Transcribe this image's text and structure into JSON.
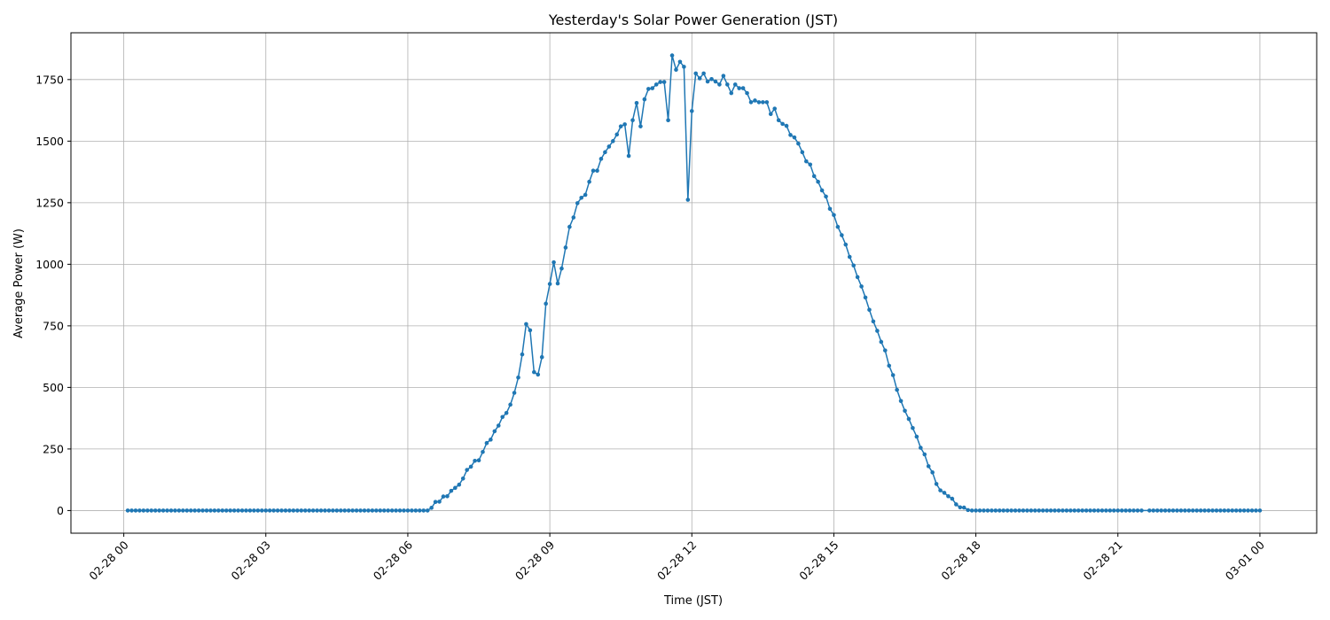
{
  "chart_data": {
    "type": "line",
    "title": "Yesterday's Solar Power Generation (JST)",
    "x_label": "Time (JST)",
    "y_label": "Average Power (W)",
    "color": "#1f77b4",
    "grid": true,
    "xlim": [
      -67,
      1512
    ],
    "ylim": [
      -92,
      1940
    ],
    "xticks": [
      {
        "value": 0,
        "label": "02-28 00"
      },
      {
        "value": 180,
        "label": "02-28 03"
      },
      {
        "value": 360,
        "label": "02-28 06"
      },
      {
        "value": 540,
        "label": "02-28 09"
      },
      {
        "value": 720,
        "label": "02-28 12"
      },
      {
        "value": 900,
        "label": "02-28 15"
      },
      {
        "value": 1080,
        "label": "02-28 18"
      },
      {
        "value": 1260,
        "label": "02-28 21"
      },
      {
        "value": 1440,
        "label": "03-01 00"
      }
    ],
    "yticks": [
      0,
      250,
      500,
      750,
      1000,
      1250,
      1500,
      1750
    ],
    "x": [
      5,
      10,
      15,
      20,
      25,
      30,
      35,
      40,
      45,
      50,
      55,
      60,
      65,
      70,
      75,
      80,
      85,
      90,
      95,
      100,
      105,
      110,
      115,
      120,
      125,
      130,
      135,
      140,
      145,
      150,
      155,
      160,
      165,
      170,
      175,
      180,
      185,
      190,
      195,
      200,
      205,
      210,
      215,
      220,
      225,
      230,
      235,
      240,
      245,
      250,
      255,
      260,
      265,
      270,
      275,
      280,
      285,
      290,
      295,
      300,
      305,
      310,
      315,
      320,
      325,
      330,
      335,
      340,
      345,
      350,
      355,
      360,
      365,
      370,
      375,
      380,
      385,
      390,
      395,
      400,
      405,
      410,
      415,
      420,
      425,
      430,
      435,
      440,
      445,
      450,
      455,
      460,
      465,
      470,
      475,
      480,
      485,
      490,
      495,
      500,
      505,
      510,
      515,
      520,
      525,
      530,
      535,
      540,
      545,
      550,
      555,
      560,
      565,
      570,
      575,
      580,
      585,
      590,
      595,
      600,
      605,
      610,
      615,
      620,
      625,
      630,
      635,
      640,
      645,
      650,
      655,
      660,
      665,
      670,
      675,
      680,
      685,
      690,
      695,
      700,
      705,
      710,
      715,
      720,
      725,
      730,
      735,
      740,
      745,
      750,
      755,
      760,
      765,
      770,
      775,
      780,
      785,
      790,
      795,
      800,
      805,
      810,
      815,
      820,
      825,
      830,
      835,
      840,
      845,
      850,
      855,
      860,
      865,
      870,
      875,
      880,
      885,
      890,
      895,
      900,
      905,
      910,
      915,
      920,
      925,
      930,
      935,
      940,
      945,
      950,
      955,
      960,
      965,
      970,
      975,
      980,
      985,
      990,
      995,
      1000,
      1005,
      1010,
      1015,
      1020,
      1025,
      1030,
      1035,
      1040,
      1045,
      1050,
      1055,
      1060,
      1065,
      1070,
      1075,
      1080,
      1085,
      1090,
      1095,
      1100,
      1105,
      1110,
      1115,
      1120,
      1125,
      1130,
      1135,
      1140,
      1145,
      1150,
      1155,
      1160,
      1165,
      1170,
      1175,
      1180,
      1185,
      1190,
      1195,
      1200,
      1205,
      1210,
      1215,
      1220,
      1225,
      1230,
      1235,
      1240,
      1245,
      1250,
      1255,
      1260,
      1265,
      1270,
      1275,
      1280,
      1285,
      1290,
      1300,
      1305,
      1310,
      1315,
      1320,
      1325,
      1330,
      1335,
      1340,
      1345,
      1350,
      1355,
      1360,
      1365,
      1370,
      1375,
      1380,
      1385,
      1390,
      1395,
      1400,
      1405,
      1410,
      1415,
      1420,
      1425,
      1430,
      1435,
      1440
    ],
    "values": [
      0,
      0,
      0,
      0,
      0,
      0,
      0,
      0,
      0,
      0,
      0,
      0,
      0,
      0,
      0,
      0,
      0,
      0,
      0,
      0,
      0,
      0,
      0,
      0,
      0,
      0,
      0,
      0,
      0,
      0,
      0,
      0,
      0,
      0,
      0,
      0,
      0,
      0,
      0,
      0,
      0,
      0,
      0,
      0,
      0,
      0,
      0,
      0,
      0,
      0,
      0,
      0,
      0,
      0,
      0,
      0,
      0,
      0,
      0,
      0,
      0,
      0,
      0,
      0,
      0,
      0,
      0,
      0,
      0,
      0,
      0,
      0,
      0,
      0,
      0,
      0,
      0,
      11,
      35,
      36,
      57,
      58,
      80,
      92,
      105,
      130,
      165,
      178,
      202,
      204,
      238,
      274,
      288,
      322,
      345,
      380,
      396,
      430,
      478,
      540,
      634,
      757,
      732,
      562,
      552,
      623,
      840,
      920,
      1008,
      922,
      983,
      1068,
      1152,
      1190,
      1248,
      1270,
      1282,
      1335,
      1380,
      1380,
      1428,
      1455,
      1478,
      1500,
      1527,
      1560,
      1568,
      1440,
      1585,
      1655,
      1560,
      1670,
      1712,
      1715,
      1730,
      1740,
      1740,
      1585,
      1848,
      1790,
      1822,
      1802,
      1262,
      1622,
      1775,
      1755,
      1775,
      1742,
      1752,
      1742,
      1730,
      1765,
      1730,
      1695,
      1730,
      1715,
      1715,
      1695,
      1658,
      1665,
      1658,
      1658,
      1658,
      1610,
      1632,
      1585,
      1570,
      1562,
      1525,
      1515,
      1490,
      1455,
      1418,
      1405,
      1358,
      1335,
      1300,
      1275,
      1225,
      1200,
      1152,
      1118,
      1080,
      1030,
      995,
      948,
      910,
      865,
      815,
      768,
      730,
      685,
      650,
      588,
      550,
      490,
      445,
      405,
      372,
      335,
      300,
      255,
      228,
      180,
      155,
      108,
      82,
      72,
      58,
      48,
      25,
      13,
      12,
      2,
      0,
      0,
      0,
      0,
      0,
      0,
      0,
      0,
      0,
      0,
      0,
      0,
      0,
      0,
      0,
      0,
      0,
      0,
      0,
      0,
      0,
      0,
      0,
      0,
      0,
      0,
      0,
      0,
      0,
      0,
      0,
      0,
      0,
      0,
      0,
      0,
      0,
      0,
      0,
      0,
      0,
      0,
      0,
      0,
      0,
      0,
      0,
      0,
      0,
      0,
      0,
      0,
      0,
      0,
      0,
      0,
      0,
      0,
      0,
      0,
      0,
      0,
      0,
      0,
      0,
      0,
      0,
      0,
      0,
      0,
      0,
      0,
      0
    ]
  }
}
